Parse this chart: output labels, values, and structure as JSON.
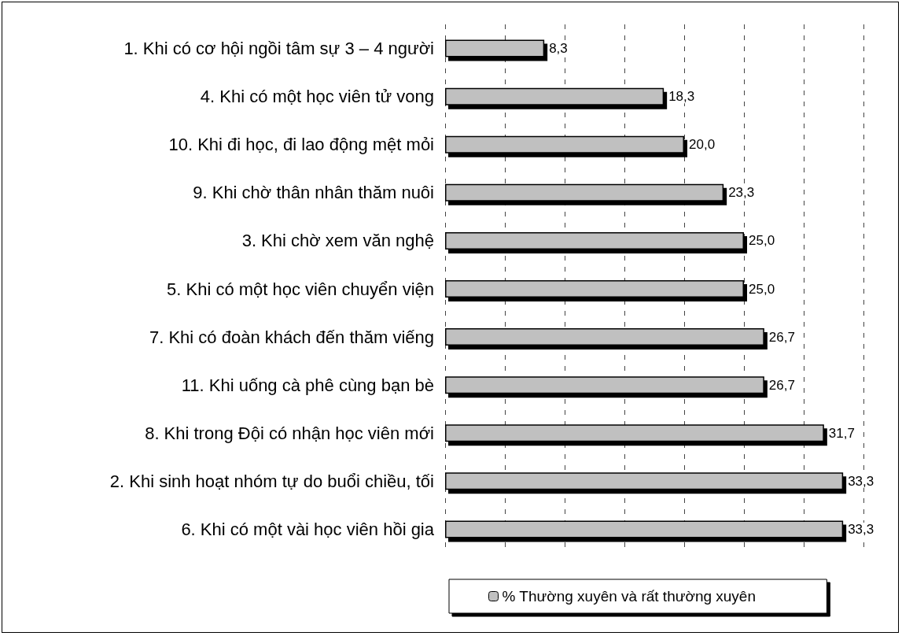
{
  "chart_data": {
    "type": "bar",
    "orientation": "horizontal",
    "categories": [
      "1. Khi có cơ hội ngồi tâm sự 3 – 4 người",
      "4. Khi có một học viên tử vong",
      "10. Khi đi học, đi lao động mệt mỏi",
      "9. Khi chờ thân nhân thăm nuôi",
      "3. Khi chờ xem văn nghệ",
      "5. Khi có một học viên chuyển viện",
      "7. Khi có đoàn khách đến thăm viếng",
      "11. Khi uống cà phê cùng bạn bè",
      "8. Khi trong Đội có nhận học viên mới",
      "2. Khi sinh hoạt nhóm tự do buổi chiều, tối",
      "6. Khi có một vài học viên hồi gia"
    ],
    "series": [
      {
        "name": "% Thường xuyên và rất thường xuyên",
        "color": "#c0c0c0",
        "values": [
          8.3,
          18.3,
          20.0,
          23.3,
          25.0,
          25.0,
          26.7,
          26.7,
          31.7,
          33.3,
          33.3
        ],
        "value_labels": [
          "8,3",
          "18,3",
          "20,0",
          "23,3",
          "25,0",
          "25,0",
          "26,7",
          "26,7",
          "31,7",
          "33,3",
          "33,3"
        ]
      }
    ],
    "tick_labels": "y",
    "grid": "x",
    "legend": "bottom"
  }
}
